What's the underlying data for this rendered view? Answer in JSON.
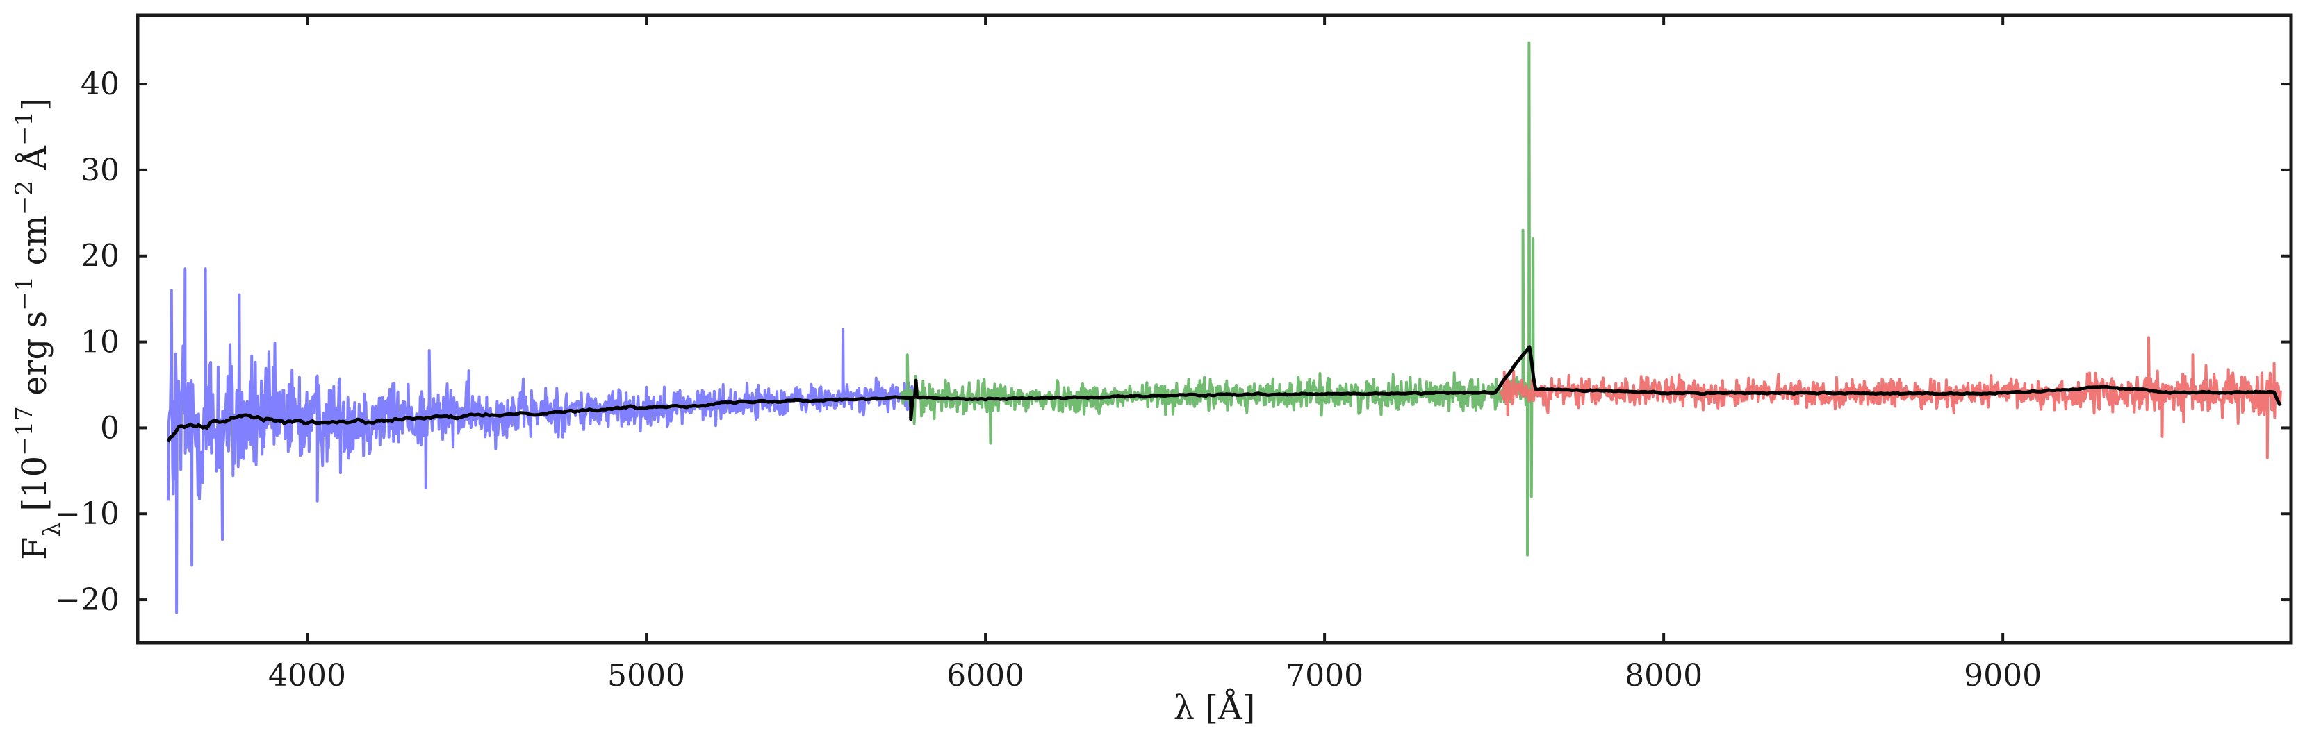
{
  "colors": {
    "blue_arm": "#7a7aff",
    "green_arm": "#6ab86a",
    "red_arm": "#f07070",
    "combined": "#000000",
    "axes": "#1a1a1a"
  },
  "chart_data": {
    "type": "line",
    "title": "",
    "xlabel": "λ [Å]",
    "ylabel": "F_λ [10^−17 erg s^−1 cm^−2 Å^−1]",
    "xlim": [
      3500,
      9850
    ],
    "ylim": [
      -25,
      48
    ],
    "grid": false,
    "legend": "none",
    "x_ticks": [
      4000,
      5000,
      6000,
      7000,
      8000,
      9000
    ],
    "y_ticks": [
      -20,
      -10,
      0,
      10,
      20,
      30,
      40
    ],
    "x_tick_labels": [
      "4000",
      "5000",
      "6000",
      "7000",
      "8000",
      "9000"
    ],
    "y_tick_labels": [
      "−20",
      "−10",
      "0",
      "10",
      "20",
      "30",
      "40"
    ],
    "series": [
      {
        "color_key": "blue_arm",
        "x_range": [
          3590,
          5800
        ],
        "continuum": [
          [
            3590,
            0
          ],
          [
            3700,
            0.5
          ],
          [
            3900,
            1.0
          ],
          [
            4200,
            1.2
          ],
          [
            4500,
            1.6
          ],
          [
            4800,
            2.0
          ],
          [
            5100,
            2.6
          ],
          [
            5400,
            3.2
          ],
          [
            5800,
            3.8
          ]
        ],
        "noise_amp": [
          [
            3590,
            9
          ],
          [
            3700,
            7
          ],
          [
            3850,
            5
          ],
          [
            4100,
            3.5
          ],
          [
            4400,
            2.5
          ],
          [
            4800,
            1.8
          ],
          [
            5300,
            1.3
          ],
          [
            5800,
            1.1
          ]
        ],
        "spikes": [
          [
            3600,
            16
          ],
          [
            3615,
            -21.5
          ],
          [
            3640,
            18.5
          ],
          [
            3660,
            -16
          ],
          [
            3700,
            18.5
          ],
          [
            3750,
            -13
          ],
          [
            3800,
            15.5
          ],
          [
            4030,
            -8.5
          ],
          [
            4350,
            -7
          ],
          [
            4360,
            9
          ],
          [
            5580,
            11.5
          ]
        ]
      },
      {
        "color_key": "green_arm",
        "x_range": [
          5750,
          7620
        ],
        "continuum": [
          [
            5750,
            3.6
          ],
          [
            6000,
            3.4
          ],
          [
            6300,
            3.5
          ],
          [
            6600,
            3.8
          ],
          [
            7000,
            3.9
          ],
          [
            7300,
            4.0
          ],
          [
            7620,
            4.2
          ]
        ],
        "noise_amp": [
          [
            5750,
            1.4
          ],
          [
            6500,
            1.2
          ],
          [
            7620,
            1.3
          ]
        ],
        "spikes": [
          [
            5770,
            8.5
          ],
          [
            5790,
            0.5
          ],
          [
            6015,
            -1.8
          ],
          [
            7585,
            23
          ],
          [
            7598,
            -14.8
          ],
          [
            7603,
            44.8
          ],
          [
            7610,
            -8
          ],
          [
            7615,
            22
          ]
        ]
      },
      {
        "color_key": "red_arm",
        "x_range": [
          7520,
          9820
        ],
        "continuum": [
          [
            7520,
            4.2
          ],
          [
            8000,
            4.1
          ],
          [
            8500,
            4.0
          ],
          [
            9000,
            4.0
          ],
          [
            9500,
            4.0
          ],
          [
            9820,
            4.0
          ]
        ],
        "noise_amp": [
          [
            7520,
            1.2
          ],
          [
            9000,
            1.1
          ],
          [
            9300,
            1.5
          ],
          [
            9820,
            1.8
          ]
        ],
        "spikes": [
          [
            7530,
            6.5
          ],
          [
            7540,
            1.5
          ],
          [
            9430,
            10.5
          ],
          [
            9470,
            -1.0
          ],
          [
            9560,
            8.5
          ],
          [
            9605,
            2.0
          ],
          [
            9780,
            -3.5
          ],
          [
            9800,
            7.5
          ]
        ]
      },
      {
        "color_key": "combined",
        "x_range": [
          3590,
          9820
        ],
        "continuum": [
          [
            3590,
            -1.5
          ],
          [
            3620,
            0.5
          ],
          [
            3700,
            0.3
          ],
          [
            3800,
            1.5
          ],
          [
            4000,
            0.5
          ],
          [
            4300,
            1.0
          ],
          [
            4600,
            1.6
          ],
          [
            5000,
            2.4
          ],
          [
            5400,
            3.2
          ],
          [
            5790,
            3.5
          ],
          [
            6000,
            3.4
          ],
          [
            6300,
            3.5
          ],
          [
            6600,
            3.8
          ],
          [
            7000,
            3.9
          ],
          [
            7500,
            4.1
          ],
          [
            7605,
            9.5
          ],
          [
            7620,
            4.5
          ],
          [
            8000,
            4.1
          ],
          [
            9000,
            4.0
          ],
          [
            9300,
            4.8
          ],
          [
            9500,
            4.1
          ],
          [
            9800,
            4.2
          ],
          [
            9820,
            2.5
          ]
        ],
        "noise_amp": [
          [
            3590,
            0.6
          ],
          [
            4500,
            0.3
          ],
          [
            6000,
            0.2
          ],
          [
            9820,
            0.2
          ]
        ],
        "spikes": [
          [
            5780,
            1.0
          ],
          [
            5795,
            5.5
          ]
        ]
      }
    ]
  }
}
